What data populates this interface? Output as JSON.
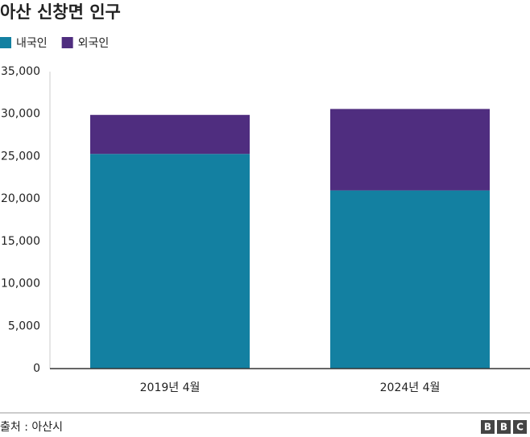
{
  "chart_data": {
    "type": "stacked-bar",
    "title": "아산 신창면 인구",
    "categories": [
      "2019년 4월",
      "2024년 4월"
    ],
    "series": [
      {
        "name": "내국인",
        "color": "#1380a1",
        "values": [
          25300,
          21000
        ]
      },
      {
        "name": "외국인",
        "color": "#4f2d7f",
        "values": [
          4600,
          9600
        ]
      }
    ],
    "ylim": [
      0,
      35000
    ],
    "yticks": [
      0,
      {
        "value": 5000,
        "label": "5,000"
      },
      {
        "value": 10000,
        "label": "10,000"
      },
      {
        "value": 15000,
        "label": "15,000"
      },
      {
        "value": 20000,
        "label": "20,000"
      },
      {
        "value": 25000,
        "label": "25,000"
      },
      {
        "value": 30000,
        "label": "30,000"
      },
      {
        "value": 35000,
        "label": "35,000"
      }
    ],
    "grid": false,
    "source": "출처 : 아산시",
    "logo": [
      "B",
      "B",
      "C"
    ]
  }
}
